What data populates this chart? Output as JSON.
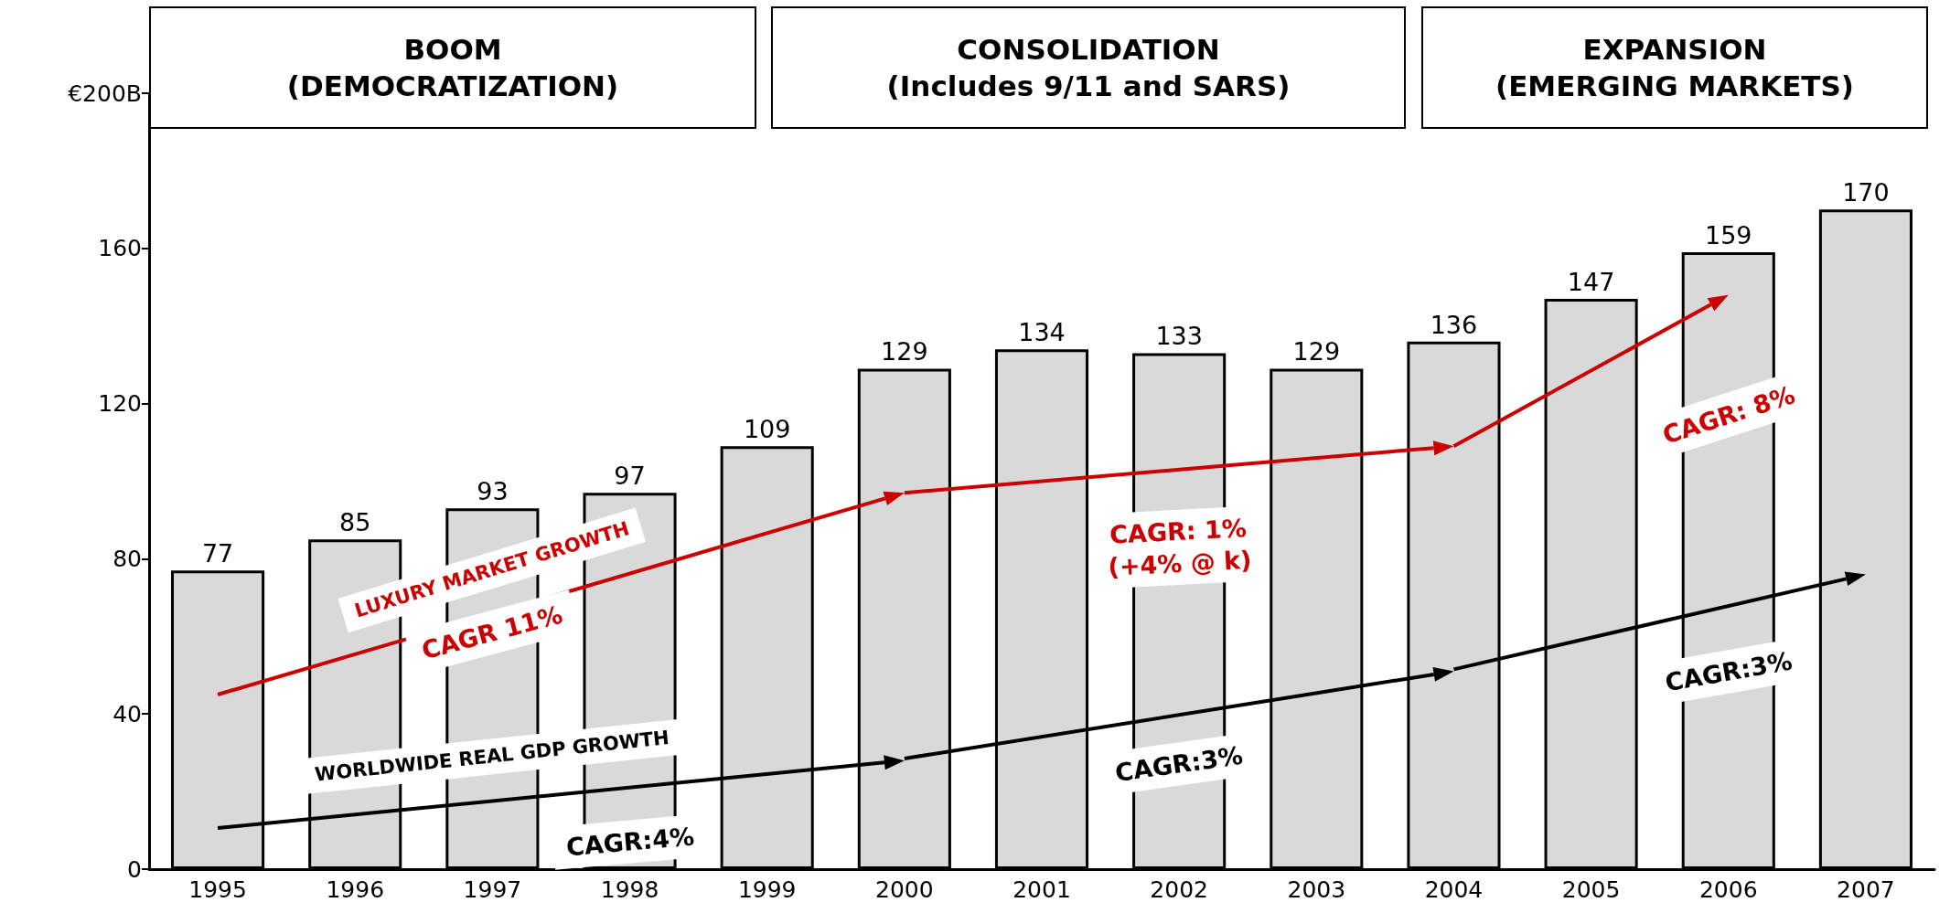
{
  "chart_data": {
    "type": "bar",
    "categories": [
      "1995",
      "1996",
      "1997",
      "1998",
      "1999",
      "2000",
      "2001",
      "2002",
      "2003",
      "2004",
      "2005",
      "2006",
      "2007"
    ],
    "values": [
      77,
      85,
      93,
      97,
      109,
      129,
      134,
      133,
      129,
      136,
      147,
      159,
      170
    ],
    "color": "#d9d9d9",
    "ylim": [
      0,
      200
    ],
    "yticks": [
      0,
      40,
      80,
      120,
      160,
      {
        "value": 200,
        "label": "€200B"
      }
    ],
    "data_labels": true,
    "annotations": [
      "BOOM\n(DEMOCRATIZATION)",
      "CONSOLIDATION\n(Includes 9/11 and SARS)",
      "EXPANSION\n(EMERGING MARKETS)",
      "LUXURY MARKET GROWTH",
      "CAGR 11%",
      "WORLDWIDE REAL GDP GROWTH",
      "CAGR:4%",
      "CAGR: 1%\n(+4% @ k)",
      "CAGR:3%",
      "CAGR: 8%",
      "CAGR:3%"
    ]
  }
}
